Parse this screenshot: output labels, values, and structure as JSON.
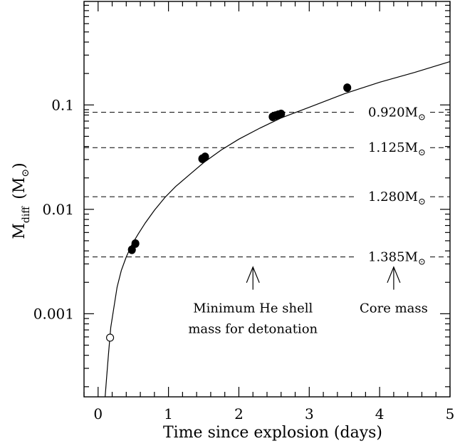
{
  "chart_data": {
    "type": "scatter",
    "xlabel": "Time since explosion (days)",
    "ylabel": {
      "main": "M",
      "subscript": "diff",
      "unit": "(M",
      "unit_symbol": "⊙",
      "unit_close": ")"
    },
    "xlim": [
      -0.2,
      5.0
    ],
    "ylim": [
      0.00016,
      0.98
    ],
    "y_scale": "log",
    "x_ticks": [
      {
        "value": 0,
        "label": "0"
      },
      {
        "value": 1,
        "label": "1"
      },
      {
        "value": 2,
        "label": "2"
      },
      {
        "value": 3,
        "label": "3"
      },
      {
        "value": 4,
        "label": "4"
      },
      {
        "value": 5,
        "label": "5"
      }
    ],
    "y_ticks": [
      {
        "value": 0.001,
        "label": "0.001"
      },
      {
        "value": 0.01,
        "label": "0.01"
      },
      {
        "value": 0.1,
        "label": "0.1"
      }
    ],
    "curve": {
      "name": "",
      "x": [
        0.1,
        0.12,
        0.15,
        0.18,
        0.22,
        0.27,
        0.33,
        0.4,
        0.48,
        0.57,
        0.67,
        0.8,
        0.95,
        1.1,
        1.3,
        1.5,
        1.75,
        2.0,
        2.3,
        2.6,
        3.0,
        3.5,
        4.0,
        4.5,
        5.0
      ],
      "y": [
        0.00016,
        0.00024,
        0.00043,
        0.00074,
        0.0011,
        0.0018,
        0.0026,
        0.0035,
        0.0046,
        0.0058,
        0.0074,
        0.0098,
        0.013,
        0.0165,
        0.0215,
        0.028,
        0.037,
        0.047,
        0.06,
        0.075,
        0.095,
        0.128,
        0.165,
        0.205,
        0.26
      ]
    },
    "series": [
      {
        "name": "",
        "marker": "filled",
        "x": [
          0.48,
          0.53,
          1.48,
          1.52,
          2.48,
          2.52,
          2.56,
          2.6,
          3.54
        ],
        "y": [
          0.0041,
          0.0047,
          0.0305,
          0.0318,
          0.077,
          0.079,
          0.0805,
          0.082,
          0.146
        ]
      },
      {
        "name": "",
        "marker": "open",
        "x": [
          0.17
        ],
        "y": [
          0.00059
        ]
      }
    ],
    "horizontal_lines": [
      {
        "y": 0.085,
        "label_value": "0.920M",
        "label_symbol": "⊙"
      },
      {
        "y": 0.039,
        "label_value": "1.125M",
        "label_symbol": "⊙"
      },
      {
        "y": 0.0132,
        "label_value": "1.280M",
        "label_symbol": "⊙"
      },
      {
        "y": 0.0035,
        "label_value": "1.385M",
        "label_symbol": "⊙"
      }
    ],
    "annotations": [
      {
        "arrow_x": 2.2,
        "arrow_top_y": 0.0028,
        "arrow_bottom_y": 0.0017,
        "lines": [
          "Minimum He shell",
          "mass for detonation"
        ]
      },
      {
        "arrow_x": 4.2,
        "arrow_top_y": 0.0028,
        "arrow_bottom_y": 0.0017,
        "lines": [
          "Core mass"
        ]
      }
    ],
    "grid": false,
    "legend": "none"
  }
}
